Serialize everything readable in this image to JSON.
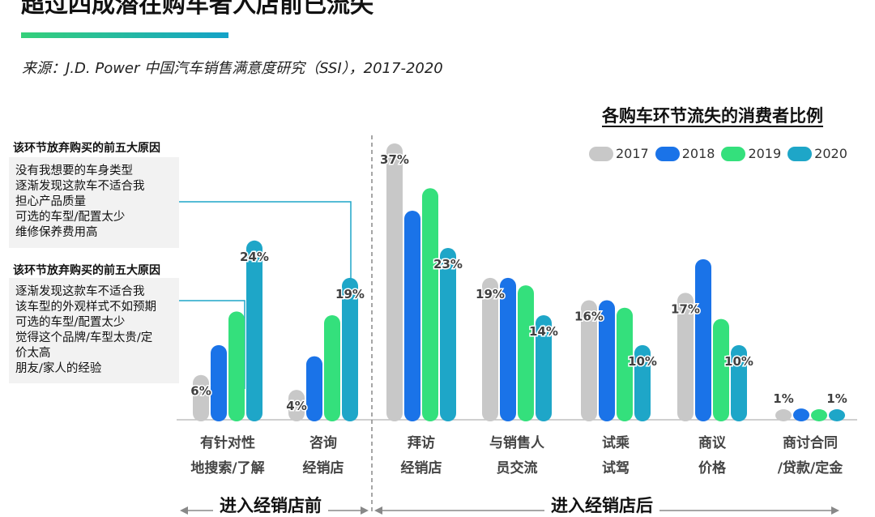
{
  "header": {
    "title": "超过四成潜在购车者入店前已流失",
    "source": "来源：J.D. Power 中国汽车销售满意度研究（SSI），2017-2020"
  },
  "reasons": [
    {
      "heading": "该环节放弃购买的前五大原因",
      "items": [
        "没有我想要的车身类型",
        "逐渐发现这款车不适合我",
        "担心产品质量",
        "可选的车型/配置太少",
        "维修保养费用高"
      ]
    },
    {
      "heading": "该环节放弃购买的前五大原因",
      "items": [
        "逐渐发现这款车不适合我",
        "该车型的外观样式不如预期",
        "可选的车型/配置太少",
        "觉得这个品牌/车型太贵/定",
        "价太高",
        "朋友/家人的经验"
      ]
    }
  ],
  "phases": {
    "before": "进入经销店前",
    "after": "进入经销店后"
  },
  "chart_data": {
    "type": "bar",
    "title": "各购车环节流失的消费者比例",
    "categories": [
      [
        "有针对性",
        "地搜索/了解"
      ],
      [
        "咨询",
        "经销店"
      ],
      [
        "拜访",
        "经销店"
      ],
      [
        "与销售人",
        "员交流"
      ],
      [
        "试乘",
        "试驾"
      ],
      [
        "商议",
        "价格"
      ],
      [
        "商讨合同",
        "/贷款/定金"
      ]
    ],
    "series": [
      {
        "name": "2017",
        "color": "#c8c8c8",
        "values": [
          6,
          4,
          37,
          19,
          16,
          17,
          1
        ]
      },
      {
        "name": "2018",
        "color": "#1a73e8",
        "values": [
          10,
          8.5,
          28,
          19,
          16,
          21.5,
          1.5
        ]
      },
      {
        "name": "2019",
        "color": "#34e07c",
        "values": [
          14.5,
          14,
          31,
          18,
          15,
          13.5,
          1
        ]
      },
      {
        "name": "2020",
        "color": "#1ea6c8",
        "values": [
          24,
          19,
          23,
          14,
          10,
          10,
          1
        ]
      }
    ],
    "data_labels": [
      {
        "category": 0,
        "series": 0,
        "text": "6%"
      },
      {
        "category": 0,
        "series": 3,
        "text": "24%"
      },
      {
        "category": 1,
        "series": 0,
        "text": "4%"
      },
      {
        "category": 1,
        "series": 3,
        "text": "19%"
      },
      {
        "category": 2,
        "series": 0,
        "text": "37%"
      },
      {
        "category": 2,
        "series": 3,
        "text": "23%"
      },
      {
        "category": 3,
        "series": 0,
        "text": "19%"
      },
      {
        "category": 3,
        "series": 3,
        "text": "14%"
      },
      {
        "category": 4,
        "series": 0,
        "text": "16%"
      },
      {
        "category": 4,
        "series": 3,
        "text": "10%"
      },
      {
        "category": 5,
        "series": 0,
        "text": "17%"
      },
      {
        "category": 5,
        "series": 3,
        "text": "10%"
      },
      {
        "category": 6,
        "series": 0,
        "text": "1%"
      },
      {
        "category": 6,
        "series": 3,
        "text": "1%"
      }
    ],
    "ylim": [
      0,
      38
    ],
    "legend_position": "top-right"
  }
}
